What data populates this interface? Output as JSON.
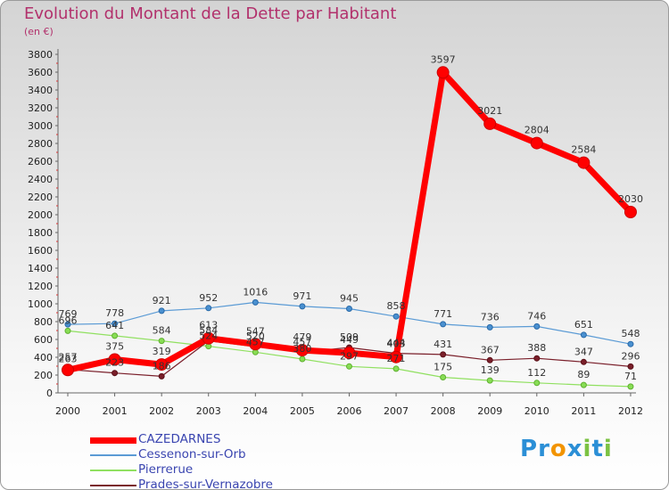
{
  "chart_data": {
    "type": "line",
    "title": "Evolution du Montant de la Dette par Habitant",
    "subtitle": "(en €)",
    "categories": [
      "2000",
      "2001",
      "2002",
      "2003",
      "2004",
      "2005",
      "2006",
      "2007",
      "2008",
      "2009",
      "2010",
      "2011",
      "2012"
    ],
    "ylim": [
      0,
      3800
    ],
    "yticks": [
      0,
      200,
      400,
      600,
      800,
      1000,
      1200,
      1400,
      1600,
      1800,
      2000,
      2200,
      2400,
      2600,
      2800,
      3000,
      3200,
      3400,
      3600,
      3800
    ],
    "grid": false,
    "legend_position": "bottom-left",
    "series": [
      {
        "name": "CAZEDARNES",
        "color": "#ff0000",
        "values": [
          257,
          375,
          319,
          613,
          547,
          479,
          449,
          403,
          3597,
          3021,
          2804,
          2584,
          2030
        ]
      },
      {
        "name": "Cessenon-sur-Orb",
        "color": "#5b9bd5",
        "values": [
          769,
          778,
          921,
          952,
          1016,
          971,
          945,
          858,
          771,
          736,
          746,
          651,
          548
        ]
      },
      {
        "name": "Pierrerue",
        "color": "#90e060",
        "values": [
          696,
          641,
          584,
          524,
          457,
          380,
          297,
          271,
          175,
          139,
          112,
          89,
          71
        ]
      },
      {
        "name": "Prades-sur-Vernazobre",
        "color": "#7a1f2a",
        "values": [
          263,
          223,
          186,
          584,
          520,
          457,
          509,
          444,
          431,
          367,
          388,
          347,
          296
        ]
      }
    ]
  },
  "logo": {
    "letters": [
      "P",
      "r",
      "o",
      "x",
      "i",
      "t",
      "i"
    ],
    "colors": [
      "#2b8fd6",
      "#2b8fd6",
      "#f29400",
      "#2b8fd6",
      "#7bc243",
      "#2b8fd6",
      "#7bc243"
    ]
  }
}
